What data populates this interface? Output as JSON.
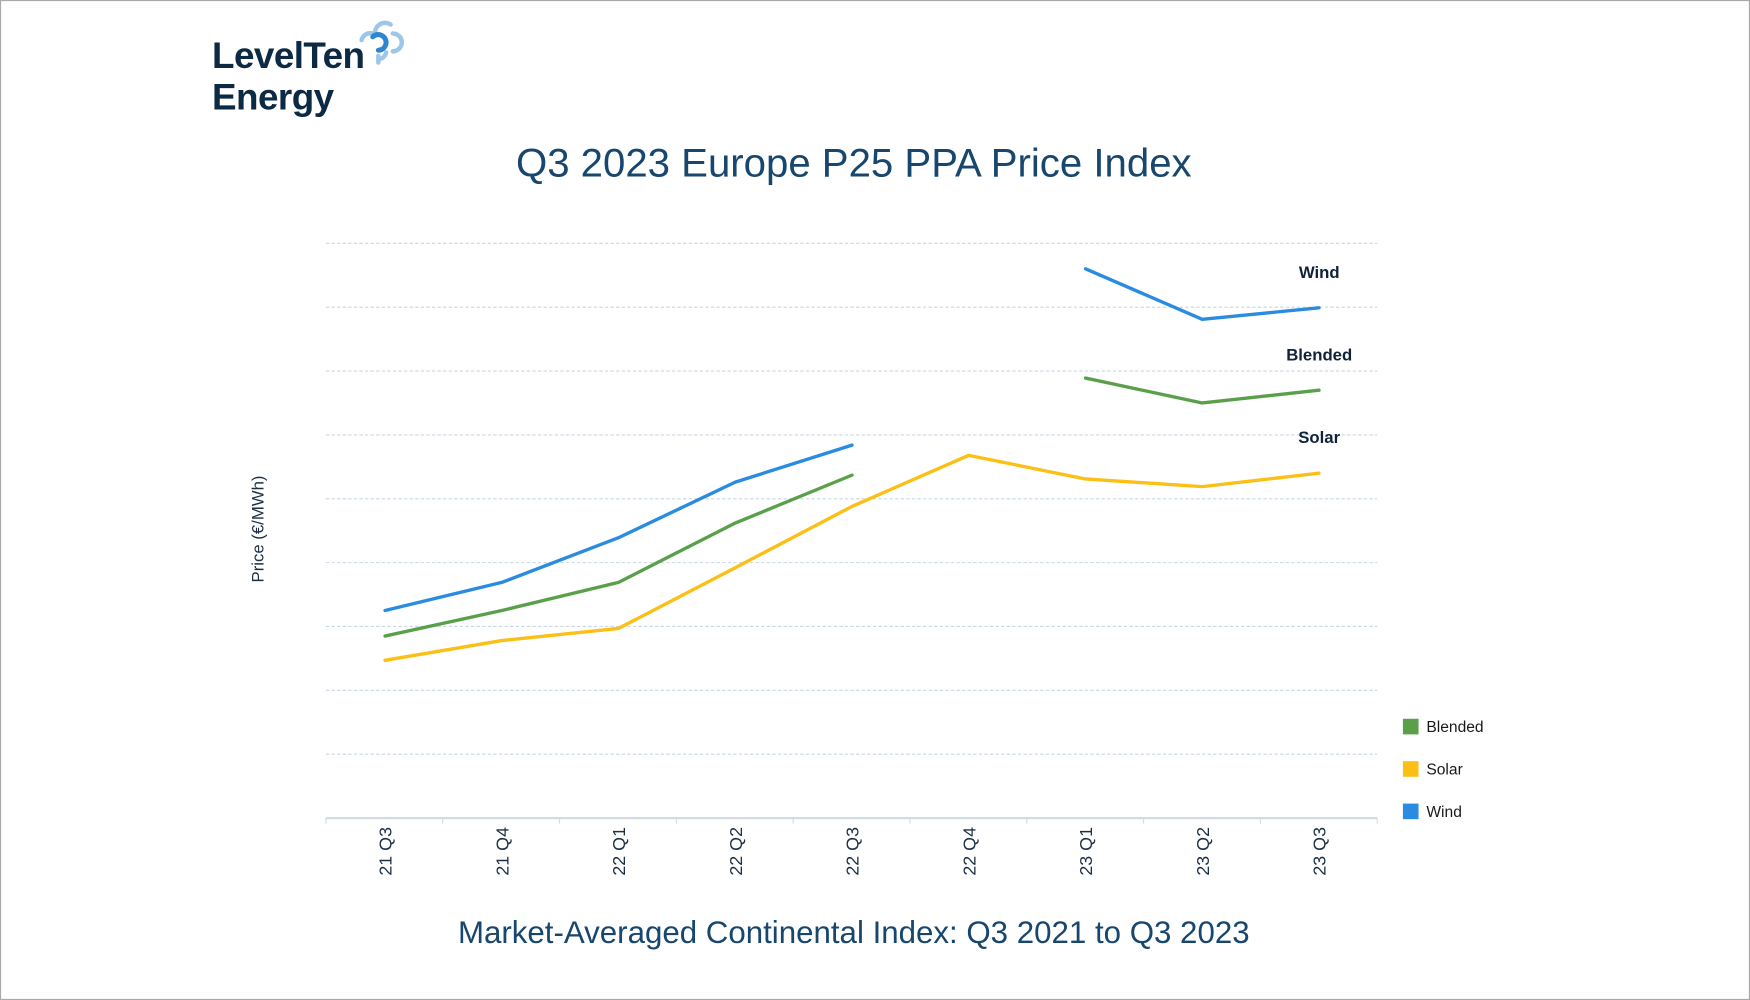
{
  "logo": {
    "line1": "LevelTen",
    "line2": "Energy",
    "colors": {
      "text": "#0d2a45",
      "mark_dark": "#2f86d0",
      "mark_light": "#9cc6ea"
    }
  },
  "chart_data": {
    "type": "line",
    "title": "Q3 2023 Europe P25 PPA Price Index",
    "subtitle": "Market-Averaged Continental Index: Q3 2021 to Q3 2023",
    "xlabel": "",
    "ylabel": "Price (€/MWh)",
    "y_tick_labels_shown": false,
    "ylim": [
      0,
      9
    ],
    "grid": true,
    "categories": [
      "21 Q3",
      "21 Q4",
      "22 Q1",
      "22 Q2",
      "22 Q3",
      "22 Q4",
      "23 Q1",
      "23 Q2",
      "23 Q3"
    ],
    "series": [
      {
        "name": "Wind",
        "color": "#2a8ce0",
        "values": [
          3.25,
          3.69,
          4.39,
          5.26,
          5.84,
          null,
          8.6,
          7.81,
          7.99
        ]
      },
      {
        "name": "Blended",
        "color": "#5aa04a",
        "values": [
          2.85,
          3.25,
          3.69,
          4.62,
          5.37,
          null,
          6.89,
          6.5,
          6.7
        ]
      },
      {
        "name": "Solar",
        "color": "#fbbf15",
        "values": [
          2.47,
          2.78,
          2.97,
          3.92,
          4.88,
          5.68,
          5.31,
          5.19,
          5.4
        ]
      }
    ],
    "end_labels": [
      "Wind",
      "Blended",
      "Solar"
    ],
    "legend": {
      "placement": "bottom-right",
      "entries": [
        "Blended",
        "Solar",
        "Wind"
      ]
    }
  }
}
